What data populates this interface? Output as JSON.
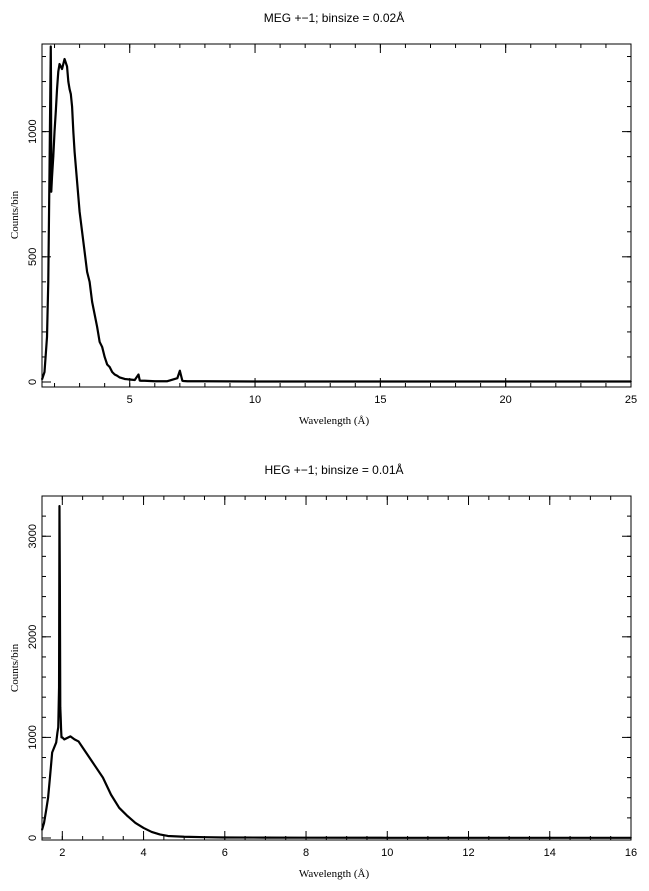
{
  "chart_data": [
    {
      "type": "line",
      "title": "MEG +−1; binsize = 0.02Å",
      "xlabel": "Wavelength (Å)",
      "ylabel": "Counts/bin",
      "xlim": [
        1.5,
        25
      ],
      "ylim": [
        -20,
        1350
      ],
      "xticks": [
        5,
        10,
        15,
        20,
        25
      ],
      "yticks": [
        0,
        500,
        1000
      ],
      "xminor_step": 1,
      "yminor_step": 100,
      "grid": false,
      "series": [
        {
          "x": [
            1.5,
            1.6,
            1.7,
            1.75,
            1.8,
            1.85,
            1.86,
            1.87,
            1.9,
            1.95,
            2.0,
            2.05,
            2.1,
            2.15,
            2.2,
            2.3,
            2.4,
            2.5,
            2.55,
            2.6,
            2.65,
            2.7,
            2.75,
            2.8,
            2.9,
            3.0,
            3.1,
            3.2,
            3.3,
            3.4,
            3.45,
            3.5,
            3.6,
            3.7,
            3.75,
            3.8,
            3.9,
            4.0,
            4.1,
            4.2,
            4.3,
            4.4,
            4.5,
            4.6,
            4.8,
            5.0,
            5.2,
            5.35,
            5.4,
            5.45,
            5.6,
            5.8,
            6.0,
            6.5,
            6.9,
            7.0,
            7.05,
            7.1,
            7.15,
            7.3,
            8.0,
            10.0,
            15.0,
            20.0,
            25.0
          ],
          "y": [
            10,
            40,
            180,
            400,
            850,
            1340,
            1200,
            760,
            820,
            900,
            1000,
            1080,
            1170,
            1240,
            1270,
            1250,
            1290,
            1260,
            1200,
            1170,
            1150,
            1100,
            1000,
            920,
            800,
            680,
            600,
            520,
            440,
            400,
            360,
            320,
            270,
            220,
            190,
            160,
            140,
            100,
            70,
            60,
            40,
            30,
            25,
            18,
            12,
            10,
            8,
            30,
            6,
            5,
            5,
            4,
            3,
            3,
            15,
            45,
            25,
            5,
            4,
            3,
            3,
            2,
            2,
            2,
            2
          ]
        }
      ]
    },
    {
      "type": "line",
      "title": "HEG +−1; binsize = 0.01Å",
      "xlabel": "Wavelength (Å)",
      "ylabel": "Counts/bin",
      "xlim": [
        1.5,
        16
      ],
      "ylim": [
        -20,
        3400
      ],
      "xticks": [
        2,
        4,
        6,
        8,
        10,
        12,
        14,
        16
      ],
      "yticks": [
        0,
        1000,
        2000,
        3000
      ],
      "xminor_step": 0.5,
      "yminor_step": 200,
      "grid": false,
      "series": [
        {
          "x": [
            1.5,
            1.55,
            1.6,
            1.65,
            1.7,
            1.75,
            1.8,
            1.85,
            1.88,
            1.9,
            1.92,
            1.93,
            1.94,
            1.95,
            1.96,
            1.97,
            1.98,
            2.0,
            2.05,
            2.1,
            2.2,
            2.3,
            2.4,
            2.5,
            2.6,
            2.8,
            3.0,
            3.2,
            3.4,
            3.6,
            3.8,
            4.0,
            4.2,
            4.4,
            4.6,
            5.0,
            5.5,
            6.0,
            7.0,
            8.0,
            10.0,
            12.0,
            14.0,
            16.0
          ],
          "y": [
            80,
            150,
            270,
            400,
            620,
            850,
            900,
            950,
            1050,
            1100,
            1500,
            3300,
            2500,
            1300,
            1200,
            1080,
            1000,
            1000,
            980,
            990,
            1010,
            980,
            960,
            900,
            840,
            720,
            600,
            430,
            300,
            220,
            150,
            100,
            60,
            35,
            20,
            12,
            8,
            5,
            4,
            3,
            2,
            2,
            2,
            2
          ]
        }
      ]
    }
  ]
}
